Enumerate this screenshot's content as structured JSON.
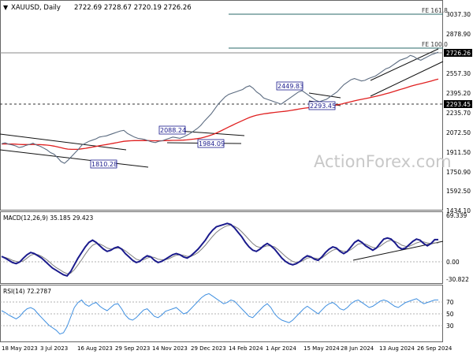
{
  "header": {
    "symbol": "XAUUSD, Daily",
    "ohlc": "2722.69 2728.67 2720.19 2726.26"
  },
  "watermark": "ActionForex.com",
  "colors": {
    "price": "#5b6b80",
    "ema55": "#000000",
    "ema_slow": "#e02020",
    "macd": "#1a1a8c",
    "signal": "#7f7f7f",
    "rsi": "#3f8fe0",
    "price_label": "#1a1a8c",
    "bg": "#ffffff"
  },
  "chart_data": [
    {
      "type": "line",
      "panel": "price",
      "y_axis_ticks": [
        "3037.30",
        "2878.90",
        "2557.30",
        "2395.20",
        "2235.70",
        "2072.50",
        "1911.50",
        "1750.90",
        "1592.50",
        "1434.10"
      ],
      "ylim": [
        1434.1,
        3037.3
      ],
      "last_value_label": "2726.26",
      "horizontal_level_label": "2293.45",
      "fib_levels": [
        {
          "label": "FE 161.8",
          "value": 3037.3
        },
        {
          "label": "FE 100.0",
          "value": 2755
        }
      ],
      "annotations": [
        {
          "text": "2449.83",
          "value": 2449.83
        },
        {
          "text": "2088.24",
          "value": 2088.24
        },
        {
          "text": "1984.09",
          "value": 1984.09
        },
        {
          "text": "1810.28",
          "value": 1810.28
        },
        {
          "text": "2293.45",
          "value": 2293.45
        }
      ],
      "series": [
        {
          "values": [
            1975,
            1983,
            1972,
            1966,
            1958,
            1944,
            1950,
            1962,
            1970,
            1980,
            1965,
            1955,
            1940,
            1925,
            1903,
            1890,
            1862,
            1830,
            1815,
            1840,
            1870,
            1900,
            1930,
            1965,
            1980,
            1995,
            2005,
            2015,
            2030,
            2035,
            2040,
            2050,
            2060,
            2070,
            2080,
            2085,
            2060,
            2045,
            2030,
            2020,
            2015,
            2010,
            2000,
            1990,
            1985,
            1995,
            2000,
            2010,
            2020,
            2030,
            2025,
            2020,
            2030,
            2045,
            2060,
            2080,
            2100,
            2125,
            2160,
            2190,
            2220,
            2260,
            2300,
            2330,
            2360,
            2380,
            2390,
            2400,
            2410,
            2420,
            2440,
            2450,
            2430,
            2400,
            2380,
            2350,
            2340,
            2330,
            2320,
            2310,
            2300,
            2320,
            2340,
            2360,
            2380,
            2400,
            2410,
            2390,
            2370,
            2350,
            2330,
            2320,
            2330,
            2340,
            2360,
            2380,
            2400,
            2430,
            2460,
            2480,
            2500,
            2510,
            2500,
            2490,
            2495,
            2510,
            2520,
            2530,
            2550,
            2570,
            2590,
            2600,
            2620,
            2640,
            2660,
            2670,
            2680,
            2700,
            2690,
            2670,
            2660,
            2675,
            2690,
            2705,
            2715,
            2726
          ]
        },
        {
          "values": [
            1973,
            1974,
            1973,
            1973,
            1972,
            1970,
            1969,
            1969,
            1969,
            1970,
            1969,
            1968,
            1966,
            1964,
            1961,
            1956,
            1950,
            1943,
            1936,
            1931,
            1929,
            1929,
            1930,
            1934,
            1938,
            1943,
            1948,
            1953,
            1959,
            1964,
            1969,
            1974,
            1979,
            1984,
            1990,
            1995,
            1998,
            2000,
            2001,
            2001,
            2001,
            2002,
            2001,
            2000,
            2000,
            2000,
            2000,
            2001,
            2002,
            2003,
            2003,
            2004,
            2005,
            2007,
            2010,
            2013,
            2017,
            2022,
            2029,
            2037,
            2046,
            2057,
            2070,
            2084,
            2098,
            2112,
            2126,
            2140,
            2153,
            2166,
            2179,
            2191,
            2201,
            2209,
            2215,
            2220,
            2224,
            2228,
            2232,
            2235,
            2238,
            2241,
            2245,
            2249,
            2254,
            2259,
            2264,
            2268,
            2271,
            2274,
            2276,
            2278,
            2280,
            2282,
            2285,
            2289,
            2294,
            2299,
            2306,
            2313,
            2320,
            2327,
            2333,
            2339,
            2345,
            2351,
            2357,
            2363,
            2370,
            2377,
            2385,
            2393,
            2401,
            2410,
            2419,
            2427,
            2436,
            2446,
            2454,
            2461,
            2468,
            2475,
            2482,
            2490,
            2498,
            2506
          ]
        }
      ]
    },
    {
      "type": "line",
      "panel": "macd",
      "title": "MACD(12,26,9) 35.185 29.423",
      "y_axis_ticks": [
        "69.339",
        "0.00",
        "-30.822"
      ],
      "ylim": [
        -40,
        80
      ],
      "series": [
        {
          "values": [
            5,
            2,
            -2,
            -6,
            -8,
            -5,
            2,
            8,
            12,
            10,
            6,
            2,
            -4,
            -10,
            -16,
            -20,
            -24,
            -28,
            -30,
            -22,
            -10,
            2,
            12,
            22,
            30,
            34,
            30,
            24,
            18,
            14,
            16,
            20,
            22,
            18,
            10,
            4,
            -2,
            -6,
            -4,
            2,
            6,
            4,
            -2,
            -6,
            -4,
            0,
            4,
            8,
            10,
            8,
            4,
            2,
            6,
            12,
            18,
            26,
            34,
            44,
            52,
            58,
            60,
            62,
            64,
            62,
            56,
            48,
            40,
            30,
            22,
            16,
            14,
            18,
            24,
            28,
            24,
            18,
            10,
            2,
            -4,
            -8,
            -10,
            -8,
            -4,
            2,
            6,
            4,
            0,
            -2,
            4,
            12,
            18,
            22,
            20,
            14,
            10,
            14,
            22,
            30,
            34,
            30,
            24,
            20,
            16,
            20,
            28,
            36,
            38,
            36,
            30,
            22,
            18,
            20,
            26,
            32,
            36,
            34,
            28,
            24,
            28,
            35,
            35
          ]
        },
        {
          "values": [
            4,
            3,
            1,
            -2,
            -4,
            -5,
            -3,
            2,
            7,
            9,
            8,
            5,
            1,
            -4,
            -10,
            -15,
            -19,
            -23,
            -26,
            -25,
            -19,
            -10,
            -1,
            9,
            18,
            25,
            28,
            27,
            24,
            20,
            18,
            19,
            20,
            19,
            15,
            10,
            5,
            0,
            -2,
            -1,
            2,
            4,
            3,
            0,
            -1,
            -1,
            1,
            4,
            7,
            8,
            7,
            5,
            5,
            8,
            12,
            18,
            25,
            33,
            41,
            48,
            53,
            57,
            60,
            61,
            59,
            55,
            49,
            42,
            35,
            28,
            23,
            21,
            22,
            24,
            24,
            22,
            17,
            11,
            5,
            0,
            -4,
            -6,
            -5,
            -2,
            2,
            3,
            2,
            1,
            2,
            7,
            12,
            16,
            18,
            16,
            14,
            14,
            17,
            22,
            27,
            28,
            27,
            24,
            21,
            20,
            23,
            28,
            32,
            34,
            32,
            29,
            25,
            23,
            23,
            26,
            29,
            31,
            31,
            29,
            28,
            29,
            29
          ]
        }
      ]
    },
    {
      "type": "line",
      "panel": "rsi",
      "title": "RSI(14) 72.2787",
      "y_axis_ticks": [
        "70",
        "50",
        "30"
      ],
      "ylim": [
        10,
        90
      ],
      "series": [
        {
          "values": [
            55,
            52,
            48,
            45,
            42,
            46,
            53,
            58,
            60,
            57,
            50,
            44,
            38,
            32,
            28,
            24,
            18,
            20,
            30,
            45,
            60,
            68,
            72,
            65,
            62,
            66,
            68,
            62,
            58,
            55,
            60,
            65,
            66,
            58,
            48,
            42,
            40,
            44,
            50,
            56,
            58,
            52,
            46,
            44,
            48,
            54,
            56,
            58,
            60,
            55,
            50,
            52,
            58,
            64,
            70,
            76,
            80,
            82,
            78,
            74,
            70,
            66,
            68,
            72,
            70,
            64,
            58,
            52,
            46,
            44,
            50,
            56,
            62,
            66,
            60,
            50,
            44,
            40,
            38,
            36,
            40,
            46,
            52,
            58,
            62,
            58,
            54,
            50,
            56,
            62,
            66,
            68,
            64,
            58,
            56,
            60,
            66,
            70,
            72,
            68,
            64,
            60,
            62,
            66,
            70,
            72,
            70,
            66,
            62,
            60,
            64,
            68,
            70,
            72,
            74,
            70,
            66,
            68,
            70,
            72,
            72
          ]
        }
      ]
    }
  ],
  "x_axis_labels": [
    "18 May 2023",
    "3 Jul 2023",
    "16 Aug 2023",
    "29 Sep 2023",
    "14 Nov 2023",
    "29 Dec 2023",
    "14 Feb 2024",
    "1 Apr 2024",
    "15 May 2024",
    "28 Jun 2024",
    "13 Aug 2024",
    "26 Sep 2024"
  ]
}
